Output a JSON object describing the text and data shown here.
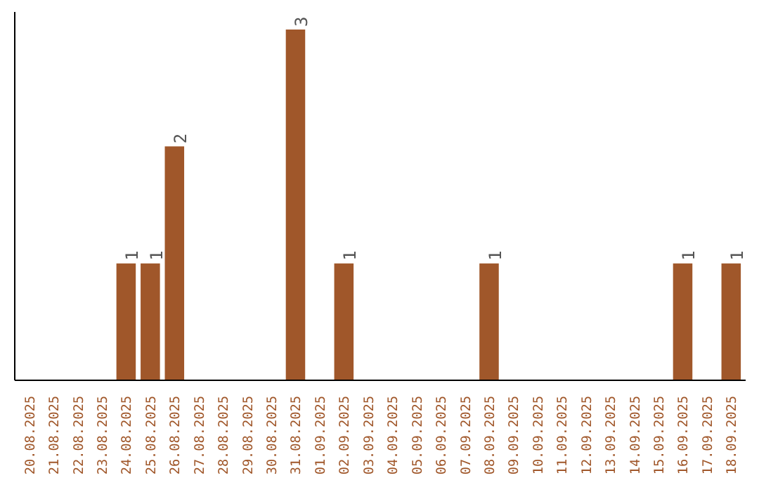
{
  "chart_data": {
    "type": "bar",
    "categories": [
      "20.08.2025",
      "21.08.2025",
      "22.08.2025",
      "23.08.2025",
      "24.08.2025",
      "25.08.2025",
      "26.08.2025",
      "27.08.2025",
      "28.08.2025",
      "29.08.2025",
      "30.08.2025",
      "31.08.2025",
      "01.09.2025",
      "02.09.2025",
      "03.09.2025",
      "04.09.2025",
      "05.09.2025",
      "06.09.2025",
      "07.09.2025",
      "08.09.2025",
      "09.09.2025",
      "10.09.2025",
      "11.09.2025",
      "12.09.2025",
      "13.09.2025",
      "14.09.2025",
      "15.09.2025",
      "16.09.2025",
      "17.09.2025",
      "18.09.2025"
    ],
    "values": [
      0,
      0,
      0,
      0,
      1,
      1,
      2,
      0,
      0,
      0,
      0,
      3,
      0,
      1,
      0,
      0,
      0,
      0,
      0,
      1,
      0,
      0,
      0,
      0,
      0,
      0,
      0,
      1,
      0,
      1
    ],
    "value_labels": [
      null,
      null,
      null,
      null,
      "1",
      "1",
      "2",
      null,
      null,
      null,
      null,
      "3",
      null,
      "1",
      null,
      null,
      null,
      null,
      null,
      "1",
      null,
      null,
      null,
      null,
      null,
      null,
      null,
      "1",
      null,
      "1"
    ],
    "color": "#a0572a",
    "tick_labels": "x",
    "grid": false
  }
}
